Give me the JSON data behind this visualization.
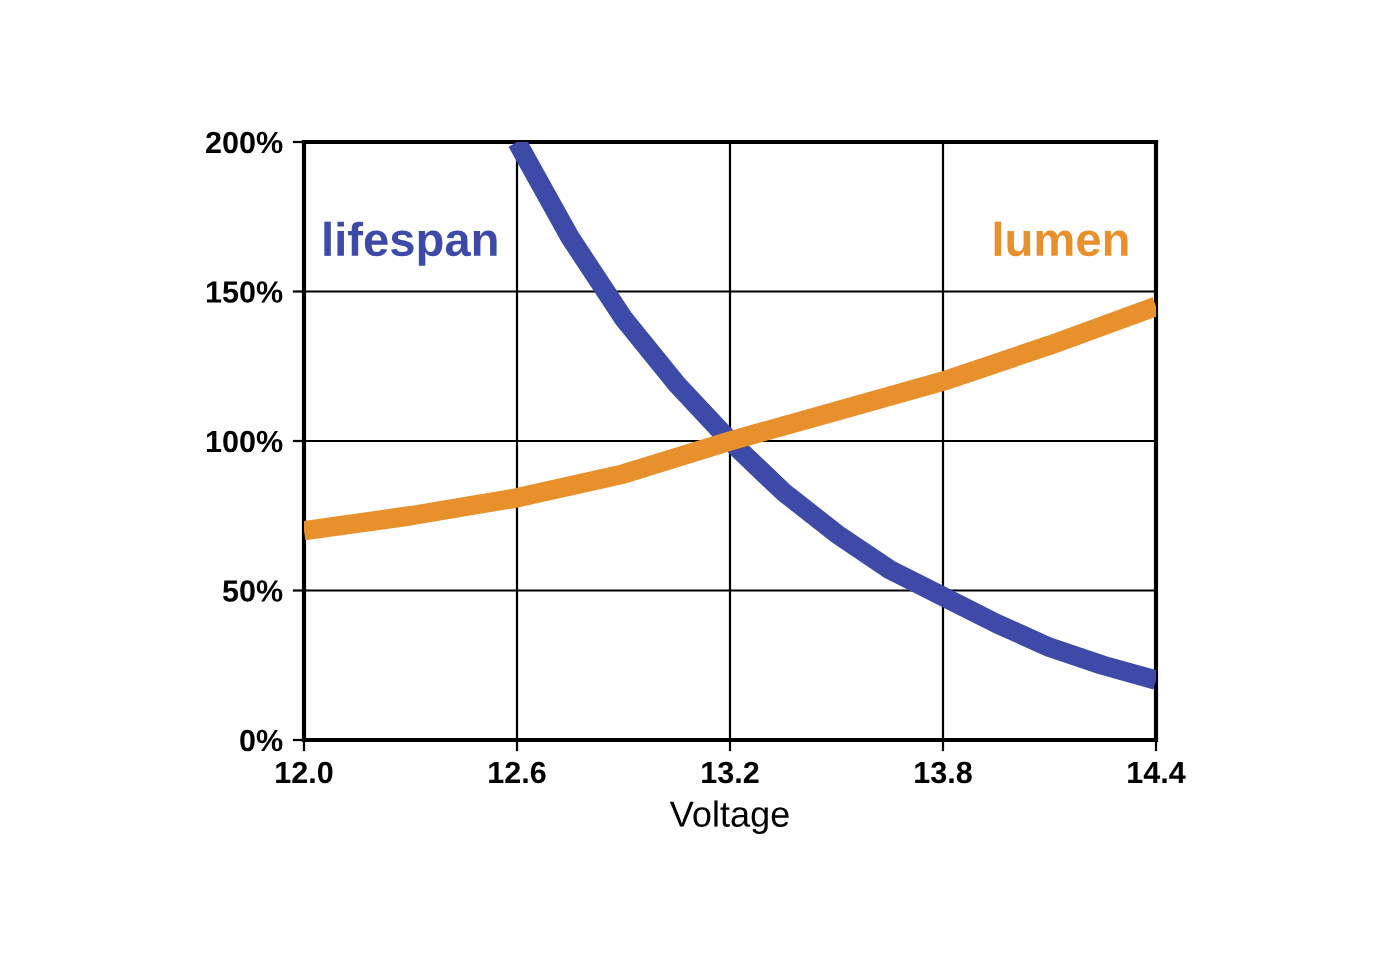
{
  "chart_data": {
    "type": "line",
    "xlabel": "Voltage",
    "xlim": [
      12.0,
      14.4
    ],
    "xticks": [
      {
        "value": 12.0,
        "label": "12.0"
      },
      {
        "value": 12.6,
        "label": "12.6"
      },
      {
        "value": 13.2,
        "label": "13.2"
      },
      {
        "value": 13.8,
        "label": "13.8"
      },
      {
        "value": 14.4,
        "label": "14.4"
      }
    ],
    "ylim": [
      0,
      200
    ],
    "yticks": [
      {
        "value": 0,
        "label": "0%"
      },
      {
        "value": 50,
        "label": "50%"
      },
      {
        "value": 100,
        "label": "100%"
      },
      {
        "value": 150,
        "label": "150%"
      },
      {
        "value": 200,
        "label": "200%"
      }
    ],
    "grid": true,
    "marker": "none",
    "line_style": "solid",
    "series": [
      {
        "name": "lifespan",
        "color": "#3d4aa8",
        "x": [
          12.6,
          12.75,
          12.9,
          13.05,
          13.2,
          13.35,
          13.5,
          13.65,
          13.8,
          13.95,
          14.1,
          14.25,
          14.4
        ],
        "values": [
          200,
          168,
          141,
          119,
          100,
          83,
          69,
          57,
          48,
          39,
          31,
          25,
          20
        ]
      },
      {
        "name": "lumen",
        "color": "#e8902c",
        "x": [
          12.0,
          12.3,
          12.6,
          12.9,
          13.2,
          13.5,
          13.8,
          14.1,
          14.4
        ],
        "values": [
          70,
          75,
          81,
          89,
          100,
          110,
          120,
          132,
          145
        ]
      }
    ]
  }
}
